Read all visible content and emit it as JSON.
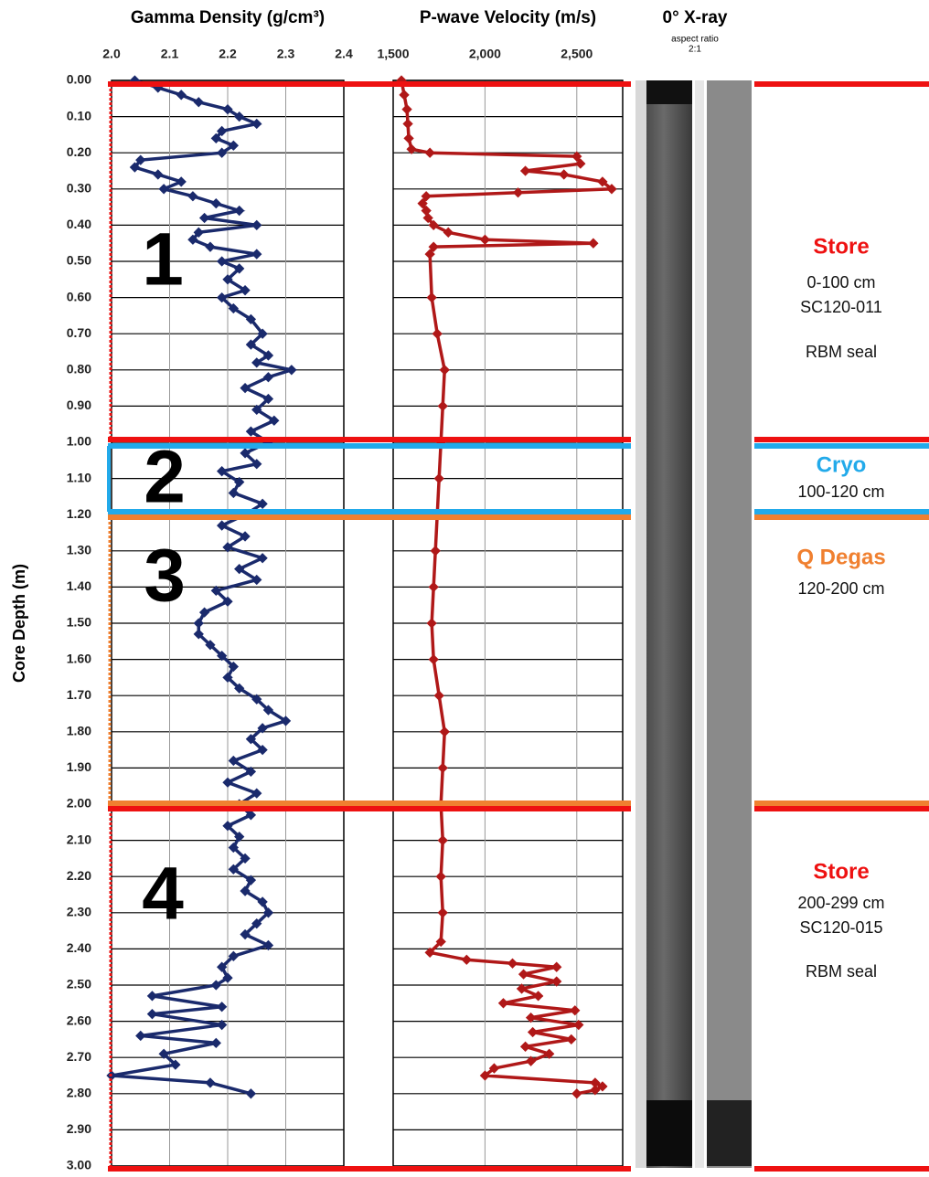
{
  "chart_data": {
    "type": "depth_log",
    "depth_label": "Core Depth (m)",
    "depthlim": [
      0,
      3
    ],
    "depthticks": [
      {
        "value": 0,
        "label": "0.00"
      },
      {
        "value": 0.1,
        "label": "0.10"
      },
      {
        "value": 0.2,
        "label": "0.20"
      },
      {
        "value": 0.3,
        "label": "0.30"
      },
      {
        "value": 0.4,
        "label": "0.40"
      },
      {
        "value": 0.5,
        "label": "0.50"
      },
      {
        "value": 0.6,
        "label": "0.60"
      },
      {
        "value": 0.7,
        "label": "0.70"
      },
      {
        "value": 0.8,
        "label": "0.80"
      },
      {
        "value": 0.9,
        "label": "0.90"
      },
      {
        "value": 1,
        "label": "1.00"
      },
      {
        "value": 1.1,
        "label": "1.10"
      },
      {
        "value": 1.2,
        "label": "1.20"
      },
      {
        "value": 1.3,
        "label": "1.30"
      },
      {
        "value": 1.4,
        "label": "1.40"
      },
      {
        "value": 1.5,
        "label": "1.50"
      },
      {
        "value": 1.6,
        "label": "1.60"
      },
      {
        "value": 1.7,
        "label": "1.70"
      },
      {
        "value": 1.8,
        "label": "1.80"
      },
      {
        "value": 1.9,
        "label": "1.90"
      },
      {
        "value": 2,
        "label": "2.00"
      },
      {
        "value": 2.1,
        "label": "2.10"
      },
      {
        "value": 2.2,
        "label": "2.20"
      },
      {
        "value": 2.3,
        "label": "2.30"
      },
      {
        "value": 2.4,
        "label": "2.40"
      },
      {
        "value": 2.5,
        "label": "2.50"
      },
      {
        "value": 2.6,
        "label": "2.60"
      },
      {
        "value": 2.7,
        "label": "2.70"
      },
      {
        "value": 2.8,
        "label": "2.80"
      },
      {
        "value": 2.9,
        "label": "2.90"
      },
      {
        "value": 3,
        "label": "3.00"
      }
    ],
    "panels": [
      {
        "type": "line",
        "title": "Gamma Density (g/cm³)",
        "color": "#1a2a6c",
        "xlim": [
          2,
          2.4
        ],
        "xticks": [
          {
            "value": 2,
            "label": "2.0"
          },
          2.1,
          2.2,
          2.3,
          2.4
        ],
        "depth": [
          0,
          0.02,
          0.04,
          0.06,
          0.08,
          0.1,
          0.12,
          0.14,
          0.16,
          0.18,
          0.2,
          0.22,
          0.24,
          0.26,
          0.28,
          0.3,
          0.32,
          0.34,
          0.36,
          0.38,
          0.4,
          0.42,
          0.44,
          0.46,
          0.48,
          0.5,
          0.52,
          0.55,
          0.58,
          0.6,
          0.63,
          0.66,
          0.7,
          0.73,
          0.76,
          0.78,
          0.8,
          0.82,
          0.85,
          0.88,
          0.91,
          0.94,
          0.97,
          1,
          1.03,
          1.06,
          1.08,
          1.11,
          1.14,
          1.17,
          1.2,
          1.23,
          1.26,
          1.29,
          1.32,
          1.35,
          1.38,
          1.41,
          1.44,
          1.47,
          1.5,
          1.53,
          1.56,
          1.59,
          1.62,
          1.65,
          1.68,
          1.71,
          1.74,
          1.77,
          1.79,
          1.82,
          1.85,
          1.88,
          1.91,
          1.94,
          1.97,
          2,
          2.03,
          2.06,
          2.09,
          2.12,
          2.15,
          2.18,
          2.21,
          2.24,
          2.27,
          2.3,
          2.33,
          2.36,
          2.39,
          2.42,
          2.45,
          2.48,
          2.5,
          2.53,
          2.56,
          2.58,
          2.61,
          2.64,
          2.66,
          2.69,
          2.72,
          2.75,
          2.77,
          2.8
        ],
        "values": [
          2.04,
          2.08,
          2.12,
          2.15,
          2.2,
          2.22,
          2.25,
          2.19,
          2.18,
          2.21,
          2.19,
          2.05,
          2.04,
          2.08,
          2.12,
          2.09,
          2.14,
          2.18,
          2.22,
          2.16,
          2.25,
          2.15,
          2.14,
          2.17,
          2.25,
          2.19,
          2.22,
          2.2,
          2.23,
          2.19,
          2.21,
          2.24,
          2.26,
          2.24,
          2.27,
          2.25,
          2.31,
          2.27,
          2.23,
          2.27,
          2.25,
          2.28,
          2.24,
          2.27,
          2.23,
          2.25,
          2.19,
          2.22,
          2.21,
          2.26,
          2.23,
          2.19,
          2.23,
          2.2,
          2.26,
          2.22,
          2.25,
          2.18,
          2.2,
          2.16,
          2.15,
          2.15,
          2.17,
          2.19,
          2.21,
          2.2,
          2.22,
          2.25,
          2.27,
          2.3,
          2.26,
          2.24,
          2.26,
          2.21,
          2.24,
          2.2,
          2.25,
          2.22,
          2.24,
          2.2,
          2.22,
          2.21,
          2.23,
          2.21,
          2.24,
          2.23,
          2.26,
          2.27,
          2.25,
          2.23,
          2.27,
          2.21,
          2.19,
          2.2,
          2.18,
          2.07,
          2.19,
          2.07,
          2.19,
          2.05,
          2.18,
          2.09,
          2.11,
          2,
          2.17,
          2.24
        ]
      },
      {
        "type": "line",
        "title": "P-wave Velocity (m/s)",
        "color": "#b01818",
        "xlim": [
          1500,
          2750
        ],
        "xticks": [
          {
            "value": 1500,
            "label": "1,500"
          },
          {
            "value": 2000,
            "label": "2,000"
          },
          {
            "value": 2500,
            "label": "2,500"
          }
        ],
        "depth": [
          0,
          0.04,
          0.08,
          0.12,
          0.16,
          0.19,
          0.2,
          0.21,
          0.23,
          0.25,
          0.26,
          0.28,
          0.3,
          0.31,
          0.32,
          0.34,
          0.36,
          0.38,
          0.4,
          0.42,
          0.44,
          0.45,
          0.46,
          0.48,
          0.6,
          0.7,
          0.8,
          0.9,
          1,
          1.1,
          1.2,
          1.3,
          1.4,
          1.5,
          1.6,
          1.7,
          1.8,
          1.9,
          2,
          2.1,
          2.2,
          2.3,
          2.38,
          2.41,
          2.43,
          2.44,
          2.45,
          2.47,
          2.49,
          2.51,
          2.53,
          2.55,
          2.57,
          2.59,
          2.61,
          2.63,
          2.65,
          2.67,
          2.69,
          2.71,
          2.73,
          2.75,
          2.77,
          2.78,
          2.79,
          2.8
        ],
        "values": [
          1545,
          1560,
          1575,
          1580,
          1585,
          1600,
          1700,
          2500,
          2520,
          2220,
          2430,
          2640,
          2690,
          2180,
          1680,
          1660,
          1680,
          1690,
          1720,
          1800,
          2000,
          2590,
          1720,
          1700,
          1710,
          1740,
          1780,
          1770,
          1760,
          1750,
          1740,
          1730,
          1720,
          1710,
          1720,
          1750,
          1780,
          1770,
          1760,
          1770,
          1760,
          1770,
          1760,
          1700,
          1900,
          2150,
          2390,
          2210,
          2390,
          2200,
          2290,
          2100,
          2490,
          2250,
          2510,
          2260,
          2470,
          2220,
          2350,
          2250,
          2050,
          2000,
          2600,
          2640,
          2600,
          2500
        ]
      }
    ],
    "xray": {
      "title": "0° X-ray",
      "subtitle": [
        "aspect ratio",
        "2:1"
      ]
    }
  },
  "annotations": {
    "sections": [
      "1",
      "2",
      "3",
      "4"
    ],
    "notes": [
      {
        "title": "Store",
        "lines": [
          "0-100 cm",
          "SC120-011",
          "RBM seal"
        ]
      },
      {
        "title": "Cryo",
        "lines": [
          "100-120 cm"
        ]
      },
      {
        "title": "Q Degas",
        "lines": [
          "120-200 cm"
        ]
      },
      {
        "title": "Store",
        "lines": [
          "200-299 cm",
          "SC120-015",
          "RBM seal"
        ]
      }
    ]
  }
}
